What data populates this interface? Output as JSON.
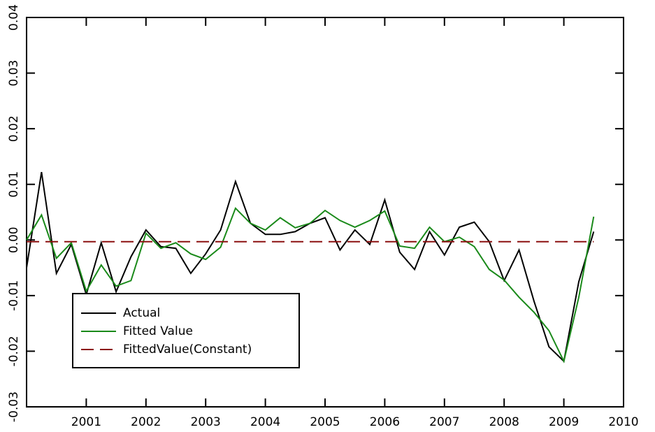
{
  "chart_data": {
    "type": "line",
    "x": [
      2000,
      2000.25,
      2000.5,
      2000.75,
      2001,
      2001.25,
      2001.5,
      2001.75,
      2002,
      2002.25,
      2002.5,
      2002.75,
      2003,
      2003.25,
      2003.5,
      2003.75,
      2004,
      2004.25,
      2004.5,
      2004.75,
      2005,
      2005.25,
      2005.5,
      2005.75,
      2006,
      2006.25,
      2006.5,
      2006.75,
      2007,
      2007.25,
      2007.5,
      2007.75,
      2008,
      2008.25,
      2008.5,
      2008.75,
      2009,
      2009.25,
      2009.5
    ],
    "series": [
      {
        "name": "Actual",
        "color": "#000000",
        "dash": false,
        "values": [
          -0.005,
          0.0122,
          -0.006,
          -0.0008,
          -0.0098,
          -0.0005,
          -0.0093,
          -0.003,
          0.0018,
          -0.0012,
          -0.0015,
          -0.006,
          -0.0025,
          0.0018,
          0.0105,
          0.003,
          0.001,
          0.001,
          0.0015,
          0.003,
          0.004,
          -0.0018,
          0.0018,
          -0.0008,
          0.0072,
          -0.0022,
          -0.0053,
          0.0015,
          -0.0027,
          0.0023,
          0.0032,
          -0.0003,
          -0.0073,
          -0.0018,
          -0.011,
          -0.0192,
          -0.0218,
          -0.0075,
          0.0015
        ]
      },
      {
        "name": "Fitted Value",
        "color": "#1a8a1a",
        "dash": false,
        "values": [
          0.0,
          0.0045,
          -0.0033,
          -0.0005,
          -0.0092,
          -0.0045,
          -0.0083,
          -0.0073,
          0.0012,
          -0.0015,
          -0.0005,
          -0.0025,
          -0.0035,
          -0.0013,
          0.0057,
          0.003,
          0.0018,
          0.004,
          0.0022,
          0.003,
          0.0053,
          0.0035,
          0.0023,
          0.0035,
          0.0052,
          -0.0011,
          -0.0015,
          0.0023,
          -0.0003,
          0.0005,
          -0.0012,
          -0.0053,
          -0.0072,
          -0.0103,
          -0.013,
          -0.0163,
          -0.0218,
          -0.0103,
          0.0042
        ]
      },
      {
        "name": "FittedValue(Constant)",
        "color": "#8b1010",
        "dash": true,
        "values": [
          -0.0003,
          -0.0003,
          -0.0003,
          -0.0003,
          -0.0003,
          -0.0003,
          -0.0003,
          -0.0003,
          -0.0003,
          -0.0003,
          -0.0003,
          -0.0003,
          -0.0003,
          -0.0003,
          -0.0003,
          -0.0003,
          -0.0003,
          -0.0003,
          -0.0003,
          -0.0003,
          -0.0003,
          -0.0003,
          -0.0003,
          -0.0003,
          -0.0003,
          -0.0003,
          -0.0003,
          -0.0003,
          -0.0003,
          -0.0003,
          -0.0003,
          -0.0003,
          -0.0003,
          -0.0003,
          -0.0003,
          -0.0003,
          -0.0003,
          -0.0003,
          -0.0003
        ]
      }
    ],
    "xlim": [
      2000,
      2010
    ],
    "xticks": [
      2001,
      2002,
      2003,
      2004,
      2005,
      2006,
      2007,
      2008,
      2009,
      2010
    ],
    "ylim": [
      -0.03,
      0.04
    ],
    "yticks": [
      -0.03,
      -0.02,
      -0.01,
      {
        "value": 0,
        "label": "0.00"
      },
      0.01,
      0.02,
      0.03,
      0.04
    ],
    "legend": "lower left"
  }
}
